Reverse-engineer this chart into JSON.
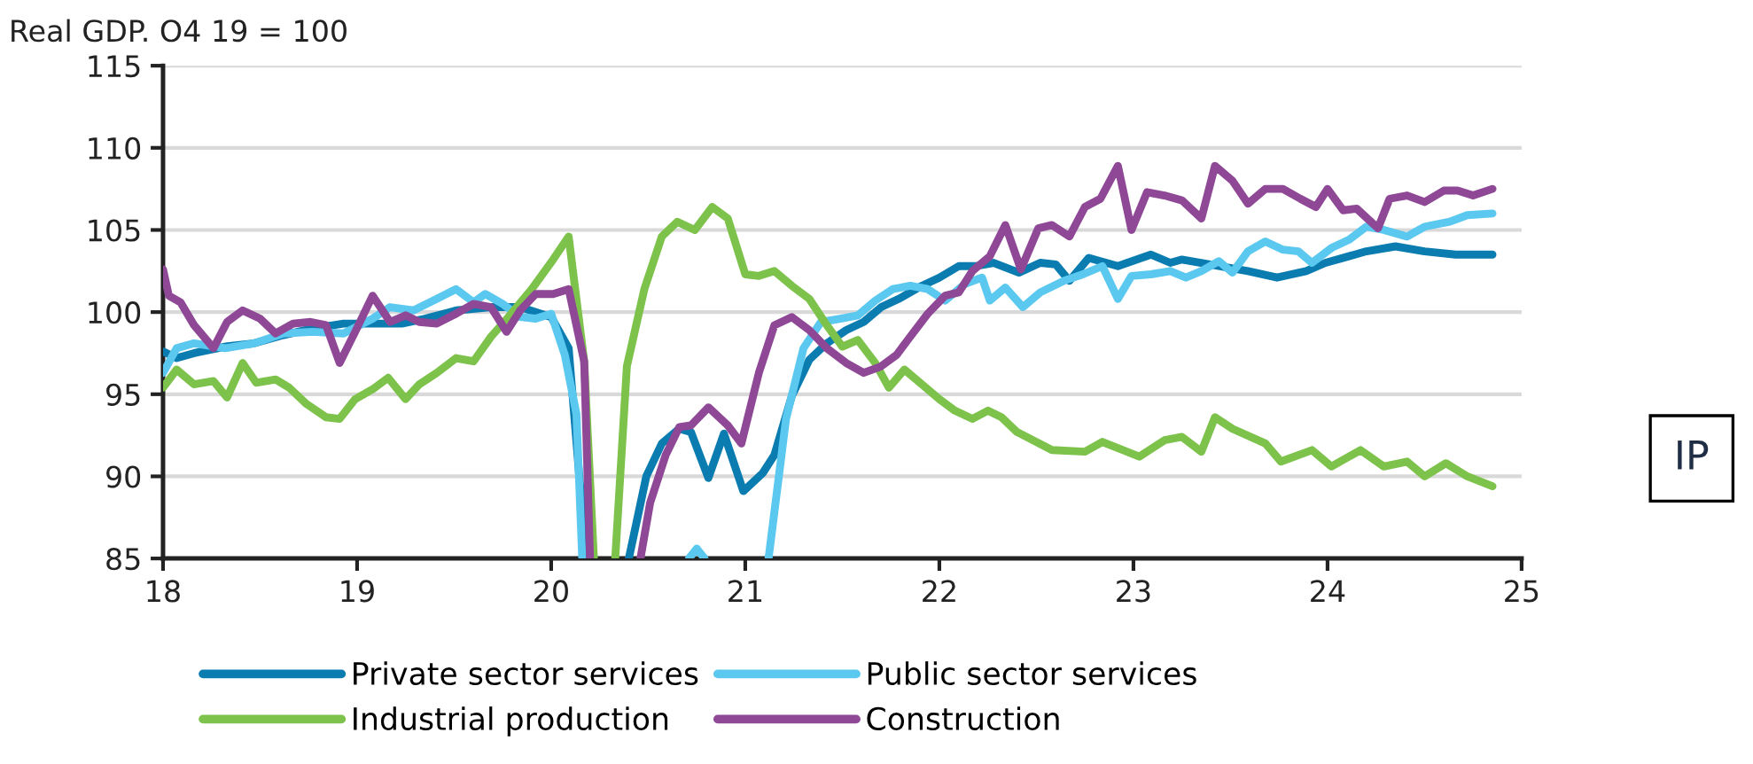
{
  "chart_data": {
    "type": "line",
    "title": "Real GDP. O4 19 = 100",
    "xlim": [
      18,
      25
    ],
    "xticks": [
      18,
      19,
      20,
      21,
      22,
      23,
      24,
      25
    ],
    "ylim": [
      85,
      115
    ],
    "yticks": [
      85,
      90,
      95,
      100,
      105,
      110,
      115
    ],
    "grid": "y",
    "legend": "bottom",
    "marker": "none",
    "line_style": "solid",
    "annotations": [
      "IP"
    ],
    "series": [
      {
        "name": "Private sector services",
        "color": "#0a7cb0",
        "x": [
          18.0,
          18.07,
          18.16,
          18.32,
          18.47,
          18.62,
          18.77,
          18.93,
          19.08,
          19.23,
          19.35,
          19.51,
          19.69,
          19.84,
          20.0,
          20.09,
          20.18,
          20.3,
          20.4,
          20.49,
          20.57,
          20.66,
          20.72,
          20.81,
          20.89,
          20.99,
          21.09,
          21.15,
          21.24,
          21.33,
          21.42,
          21.52,
          21.61,
          21.7,
          21.79,
          21.91,
          22.0,
          22.1,
          22.19,
          22.28,
          22.41,
          22.52,
          22.6,
          22.67,
          22.77,
          22.92,
          23.09,
          23.19,
          23.25,
          23.44,
          23.59,
          23.74,
          23.89,
          23.99,
          24.11,
          24.2,
          24.35,
          24.5,
          24.66,
          24.85
        ],
        "values": [
          97.6,
          97.2,
          97.5,
          97.9,
          98.1,
          98.6,
          99.0,
          99.3,
          99.3,
          99.3,
          99.6,
          100.1,
          100.3,
          100.3,
          99.7,
          97.8,
          85,
          null,
          85,
          90.0,
          92.0,
          92.9,
          92.7,
          89.9,
          92.6,
          89.1,
          90.2,
          91.3,
          94.9,
          97.1,
          98.1,
          98.9,
          99.4,
          100.3,
          100.8,
          101.6,
          102.1,
          102.8,
          102.8,
          103.0,
          102.4,
          103.0,
          102.9,
          101.9,
          103.3,
          102.8,
          103.5,
          103.0,
          103.2,
          102.8,
          102.5,
          102.1,
          102.5,
          103.0,
          103.4,
          103.7,
          104.0,
          103.7,
          103.5,
          103.5
        ]
      },
      {
        "name": "Public sector services",
        "color": "#5bc8f0",
        "x": [
          18.0,
          18.07,
          18.16,
          18.32,
          18.47,
          18.62,
          18.77,
          18.93,
          19.08,
          19.17,
          19.29,
          19.41,
          19.51,
          19.6,
          19.66,
          19.75,
          19.84,
          19.92,
          20.0,
          20.07,
          20.13,
          20.16,
          20.4,
          20.71,
          20.75,
          20.79,
          21.0,
          21.12,
          21.21,
          21.3,
          21.39,
          21.49,
          21.58,
          21.67,
          21.76,
          21.85,
          21.94,
          22.03,
          22.13,
          22.22,
          22.26,
          22.34,
          22.43,
          22.52,
          22.64,
          22.74,
          22.84,
          22.92,
          22.99,
          23.09,
          23.19,
          23.27,
          23.35,
          23.44,
          23.51,
          23.59,
          23.68,
          23.77,
          23.85,
          23.92,
          24.02,
          24.11,
          24.2,
          24.29,
          24.41,
          24.5,
          24.63,
          24.72,
          24.85
        ],
        "values": [
          96.3,
          97.8,
          98.1,
          97.8,
          98.1,
          98.7,
          98.8,
          98.7,
          99.6,
          100.3,
          100.1,
          100.8,
          101.4,
          100.6,
          101.1,
          100.5,
          99.7,
          99.6,
          99.9,
          97.4,
          93.8,
          85,
          null,
          85,
          85.6,
          85,
          null,
          85,
          93.5,
          97.8,
          99.4,
          99.6,
          99.8,
          100.7,
          101.4,
          101.6,
          101.4,
          100.7,
          101.7,
          102.1,
          100.7,
          101.5,
          100.3,
          101.2,
          101.9,
          102.3,
          102.8,
          100.8,
          102.2,
          102.3,
          102.5,
          102.1,
          102.5,
          103.1,
          102.4,
          103.7,
          104.3,
          103.8,
          103.7,
          103.0,
          103.9,
          104.4,
          105.2,
          105.0,
          104.6,
          105.2,
          105.5,
          105.9,
          106.0
        ]
      },
      {
        "name": "Industrial production",
        "color": "#7dc24b",
        "x": [
          18.0,
          18.07,
          18.16,
          18.26,
          18.33,
          18.41,
          18.48,
          18.58,
          18.65,
          18.74,
          18.84,
          18.91,
          18.99,
          19.08,
          19.16,
          19.25,
          19.32,
          19.41,
          19.51,
          19.6,
          19.69,
          19.78,
          19.9,
          20.01,
          20.09,
          20.17,
          20.22,
          20.28,
          20.33,
          20.39,
          20.48,
          20.57,
          20.65,
          20.74,
          20.83,
          20.91,
          21.0,
          21.07,
          21.15,
          21.24,
          21.33,
          21.42,
          21.5,
          21.58,
          21.67,
          21.74,
          21.82,
          21.91,
          22.0,
          22.08,
          22.17,
          22.25,
          22.32,
          22.4,
          22.58,
          22.75,
          22.84,
          23.03,
          23.16,
          23.25,
          23.35,
          23.42,
          23.51,
          23.68,
          23.76,
          23.92,
          24.02,
          24.17,
          24.29,
          24.41,
          24.5,
          24.61,
          24.72,
          24.85
        ],
        "values": [
          95.4,
          96.5,
          95.6,
          95.8,
          94.8,
          96.9,
          95.7,
          95.9,
          95.4,
          94.4,
          93.6,
          93.5,
          94.7,
          95.3,
          96.0,
          94.7,
          95.6,
          96.3,
          97.2,
          97.0,
          98.5,
          99.7,
          101.4,
          103.2,
          104.6,
          97.0,
          85,
          null,
          85,
          96.7,
          101.4,
          104.6,
          105.5,
          105.0,
          106.4,
          105.7,
          102.3,
          102.2,
          102.5,
          101.6,
          100.8,
          99.2,
          97.9,
          98.3,
          96.9,
          95.4,
          96.5,
          95.6,
          94.7,
          94.0,
          93.5,
          94.0,
          93.6,
          92.7,
          91.6,
          91.5,
          92.1,
          91.2,
          92.2,
          92.4,
          91.5,
          93.6,
          92.9,
          92.0,
          90.9,
          91.6,
          90.6,
          91.6,
          90.6,
          90.9,
          90.0,
          90.8,
          90.0,
          89.4
        ]
      },
      {
        "name": "Construction",
        "color": "#8e4896",
        "x": [
          18.0,
          18.03,
          18.09,
          18.16,
          18.26,
          18.33,
          18.41,
          18.5,
          18.58,
          18.67,
          18.76,
          18.84,
          18.91,
          18.99,
          19.08,
          19.17,
          19.25,
          19.32,
          19.41,
          19.51,
          19.6,
          19.69,
          19.77,
          19.84,
          19.92,
          20.01,
          20.09,
          20.17,
          20.2,
          20.3,
          20.46,
          20.51,
          20.59,
          20.66,
          20.72,
          20.81,
          20.91,
          20.98,
          21.07,
          21.15,
          21.24,
          21.33,
          21.42,
          21.52,
          21.61,
          21.7,
          21.78,
          21.85,
          21.94,
          22.03,
          22.1,
          22.17,
          22.26,
          22.34,
          22.42,
          22.51,
          22.58,
          22.67,
          22.75,
          22.83,
          22.92,
          22.99,
          23.07,
          23.16,
          23.25,
          23.35,
          23.42,
          23.51,
          23.59,
          23.68,
          23.77,
          23.86,
          23.94,
          24.0,
          24.08,
          24.15,
          24.26,
          24.32,
          24.41,
          24.5,
          24.6,
          24.67,
          24.75,
          24.85
        ],
        "values": [
          102.6,
          101.0,
          100.6,
          99.2,
          97.8,
          99.4,
          100.1,
          99.6,
          98.7,
          99.3,
          99.4,
          99.2,
          96.9,
          98.8,
          101.0,
          99.4,
          99.8,
          99.4,
          99.3,
          99.9,
          100.5,
          100.3,
          98.8,
          100.1,
          101.1,
          101.1,
          101.4,
          97.0,
          85,
          null,
          85,
          88.4,
          91.3,
          93.0,
          93.1,
          94.2,
          93.1,
          92.0,
          96.3,
          99.2,
          99.7,
          98.9,
          97.8,
          96.9,
          96.3,
          96.7,
          97.4,
          98.5,
          99.9,
          101.0,
          101.2,
          102.5,
          103.4,
          105.3,
          102.6,
          105.1,
          105.3,
          104.6,
          106.4,
          106.9,
          108.9,
          105.0,
          107.3,
          107.1,
          106.8,
          105.7,
          108.9,
          108.0,
          106.6,
          107.5,
          107.5,
          106.9,
          106.4,
          107.5,
          106.2,
          106.3,
          105.1,
          106.9,
          107.1,
          106.7,
          107.4,
          107.4,
          107.1,
          107.5
        ]
      }
    ]
  }
}
